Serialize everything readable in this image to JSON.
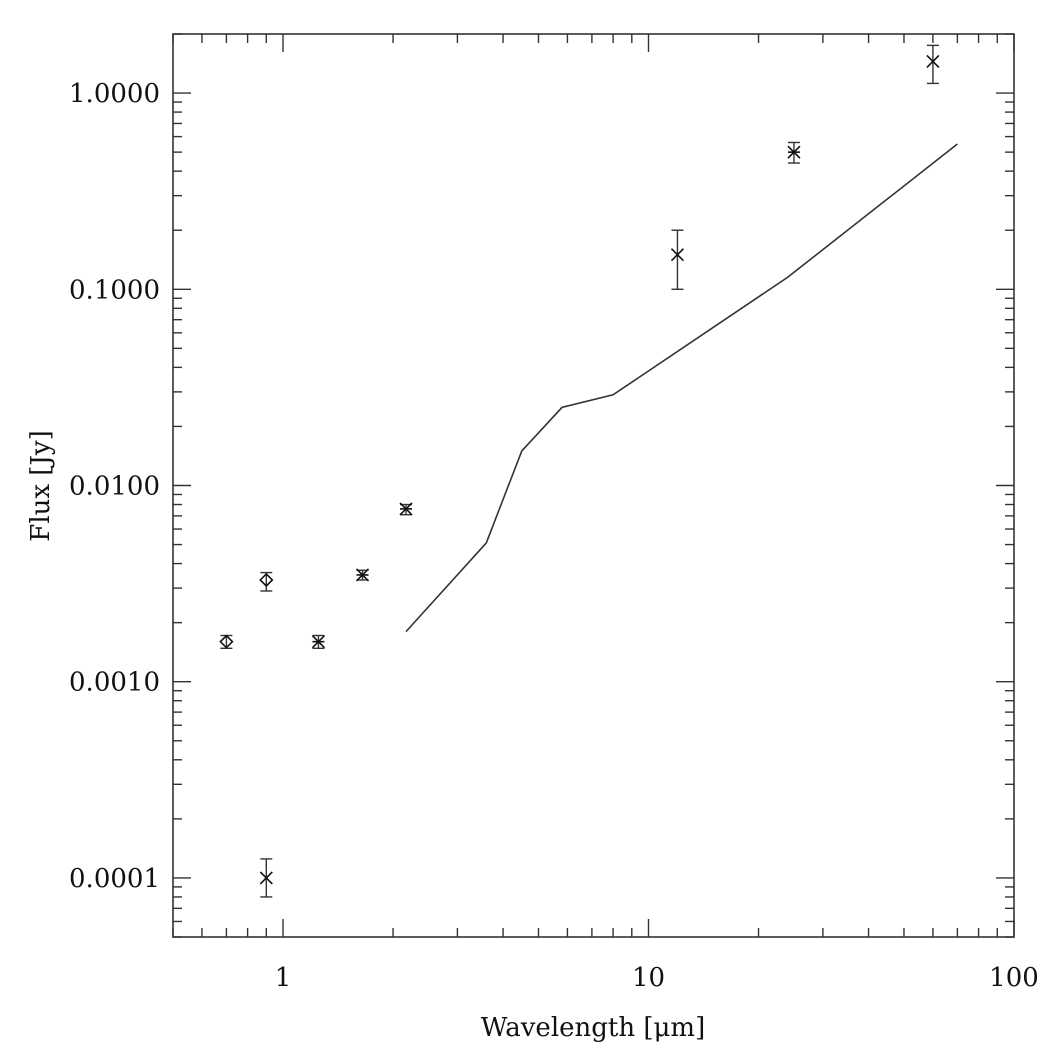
{
  "chart_data": {
    "type": "scatter",
    "title": "",
    "xlabel": "Wavelength [μm]",
    "ylabel": "Flux [Jy]",
    "x_scale": "log",
    "y_scale": "log",
    "xlim": [
      0.5,
      100
    ],
    "ylim": [
      5e-05,
      2.0
    ],
    "x_ticks": [
      {
        "value": 1,
        "label": "1"
      },
      {
        "value": 10,
        "label": "10"
      },
      {
        "value": 100,
        "label": "100"
      }
    ],
    "y_ticks": [
      {
        "value": 0.0001,
        "label": "0.0001"
      },
      {
        "value": 0.001,
        "label": "0.0010"
      },
      {
        "value": 0.01,
        "label": "0.0100"
      },
      {
        "value": 0.1,
        "label": "0.1000"
      },
      {
        "value": 1,
        "label": "1.0000"
      }
    ],
    "grid": false,
    "series": [
      {
        "type": "scatter",
        "marker": "diamond",
        "points": [
          {
            "x": 0.7,
            "y": 0.0016,
            "ylo": 0.00148,
            "yhi": 0.00172
          },
          {
            "x": 0.9,
            "y": 0.0033,
            "ylo": 0.0029,
            "yhi": 0.0036
          }
        ]
      },
      {
        "type": "scatter",
        "marker": "asterisk",
        "points": [
          {
            "x": 1.25,
            "y": 0.0016,
            "ylo": 0.00148,
            "yhi": 0.00172
          },
          {
            "x": 1.65,
            "y": 0.0035,
            "ylo": 0.0033,
            "yhi": 0.0037
          },
          {
            "x": 2.17,
            "y": 0.0076,
            "ylo": 0.0071,
            "yhi": 0.008
          },
          {
            "x": 25,
            "y": 0.5,
            "ylo": 0.44,
            "yhi": 0.56
          }
        ]
      },
      {
        "type": "scatter",
        "marker": "cross",
        "points": [
          {
            "x": 0.9,
            "y": 0.0001,
            "ylo": 8e-05,
            "yhi": 0.000125
          },
          {
            "x": 12,
            "y": 0.15,
            "ylo": 0.1,
            "yhi": 0.2
          },
          {
            "x": 60,
            "y": 1.45,
            "ylo": 1.12,
            "yhi": 1.75
          }
        ]
      },
      {
        "type": "line",
        "x": [
          2.17,
          3.6,
          4.5,
          5.8,
          8.0,
          24.0,
          70.0
        ],
        "y": [
          0.0018,
          0.0051,
          0.015,
          0.025,
          0.029,
          0.115,
          0.55
        ]
      }
    ]
  }
}
